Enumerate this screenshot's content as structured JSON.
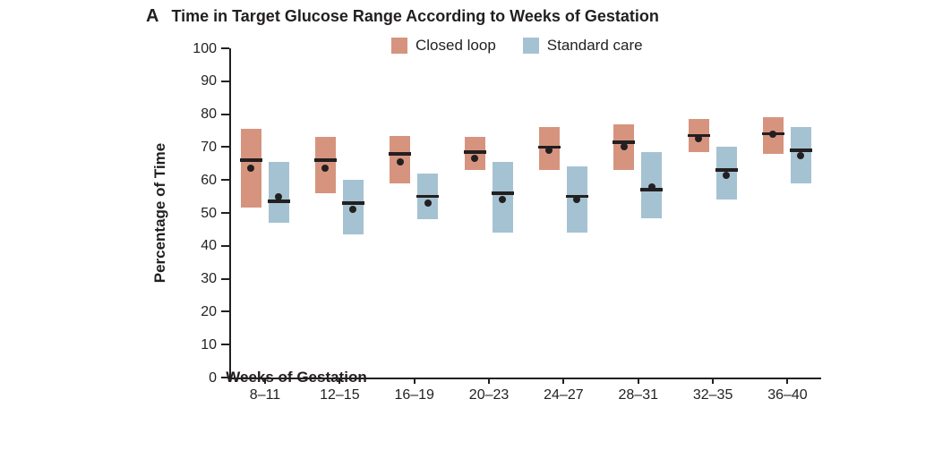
{
  "figure": {
    "panel_label": "A",
    "title": "Time in Target Glucose Range According to Weeks of Gestation"
  },
  "legend": [
    {
      "label": "Closed loop",
      "color": "#D6947F"
    },
    {
      "label": "Standard care",
      "color": "#A5C2D2"
    }
  ],
  "ink_color": "#231F20",
  "chart_data": {
    "type": "box",
    "title": "Time in Target Glucose Range According to Weeks of Gestation",
    "xlabel": "Weeks of Gestation",
    "ylabel": "Percentage of Time",
    "ylim": [
      0,
      100
    ],
    "ytick_step": 10,
    "grid": false,
    "legend_position": "top",
    "categories": [
      "8–11",
      "12–15",
      "16–19",
      "20–23",
      "24–27",
      "28–31",
      "32–35",
      "36–40"
    ],
    "marker_meaning": {
      "box": "interquartile range",
      "line": "median",
      "dot": "mean"
    },
    "series": [
      {
        "name": "Closed loop",
        "color": "#D6947F",
        "boxes": [
          {
            "q1": 51.5,
            "median": 66,
            "mean": 63.5,
            "q3": 75.5
          },
          {
            "q1": 56,
            "median": 66,
            "mean": 63.5,
            "q3": 73
          },
          {
            "q1": 59,
            "median": 68,
            "mean": 65.5,
            "q3": 73.5
          },
          {
            "q1": 63,
            "median": 68.5,
            "mean": 66.5,
            "q3": 73
          },
          {
            "q1": 63,
            "median": 70,
            "mean": 69,
            "q3": 76
          },
          {
            "q1": 63,
            "median": 71.5,
            "mean": 70,
            "q3": 77
          },
          {
            "q1": 68.5,
            "median": 73.5,
            "mean": 72.5,
            "q3": 78.5
          },
          {
            "q1": 68,
            "median": 74,
            "mean": 74,
            "q3": 79
          }
        ]
      },
      {
        "name": "Standard care",
        "color": "#A5C2D2",
        "boxes": [
          {
            "q1": 47,
            "median": 53.5,
            "mean": 55,
            "q3": 65.5
          },
          {
            "q1": 43.5,
            "median": 53,
            "mean": 51,
            "q3": 60
          },
          {
            "q1": 48,
            "median": 55,
            "mean": 53,
            "q3": 62
          },
          {
            "q1": 44,
            "median": 56,
            "mean": 54,
            "q3": 65.5
          },
          {
            "q1": 44,
            "median": 55,
            "mean": 54,
            "q3": 64
          },
          {
            "q1": 48.5,
            "median": 57,
            "mean": 58,
            "q3": 68.5
          },
          {
            "q1": 54,
            "median": 63,
            "mean": 61.5,
            "q3": 70
          },
          {
            "q1": 59,
            "median": 69,
            "mean": 67.5,
            "q3": 76
          }
        ]
      }
    ]
  }
}
